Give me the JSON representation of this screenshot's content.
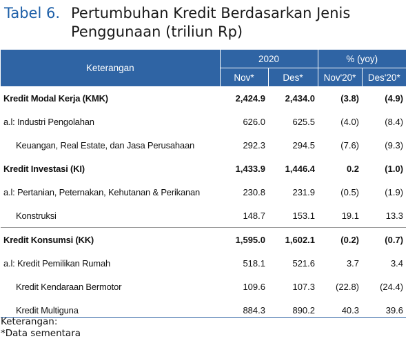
{
  "title": {
    "label": "Tabel 6.",
    "line1": "Pertumbuhan Kredit Berdasarkan Jenis",
    "line2": "Penggunaan (triliun Rp)"
  },
  "header": {
    "keterangan": "Keterangan",
    "group_year": "2020",
    "group_yoy": "% (yoy)",
    "cols": [
      "Nov*",
      "Des*",
      "Nov'20*",
      "Des'20*"
    ]
  },
  "rows": [
    {
      "label": "Kredit Modal Kerja (KMK)",
      "values": [
        "2,424.9",
        "2,434.0",
        "(3.8)",
        "(4.9)"
      ]
    },
    {
      "label": "a.l: Industri Pengolahan",
      "values": [
        "626.0",
        "625.5",
        "(4.0)",
        "(8.4)"
      ]
    },
    {
      "label": "Keuangan, Real Estate, dan Jasa Perusahaan",
      "values": [
        "292.3",
        "294.5",
        "(7.6)",
        "(9.3)"
      ]
    },
    {
      "label": "Kredit Investasi (KI)",
      "values": [
        "1,433.9",
        "1,446.4",
        "0.2",
        "(1.0)"
      ]
    },
    {
      "label": "a.l: Pertanian, Peternakan, Kehutanan & Perikanan",
      "values": [
        "230.8",
        "231.9",
        "(0.5)",
        "(1.9)"
      ]
    },
    {
      "label": "Konstruksi",
      "values": [
        "148.7",
        "153.1",
        "19.1",
        "13.3"
      ]
    },
    {
      "label": "Kredit Konsumsi (KK)",
      "values": [
        "1,595.0",
        "1,602.1",
        "(0.2)",
        "(0.7)"
      ]
    },
    {
      "label": "a.l: Kredit Pemilikan Rumah",
      "values": [
        "518.1",
        "521.6",
        "3.7",
        "3.4"
      ]
    },
    {
      "label": "Kredit Kendaraan Bermotor",
      "values": [
        "109.6",
        "107.3",
        "(22.8)",
        "(24.4)"
      ]
    },
    {
      "label": "Kredit Multiguna",
      "values": [
        "884.3",
        "890.2",
        "40.3",
        "39.6"
      ]
    }
  ],
  "footer": {
    "note_title": "Keterangan:",
    "note": "*Data sementara"
  }
}
